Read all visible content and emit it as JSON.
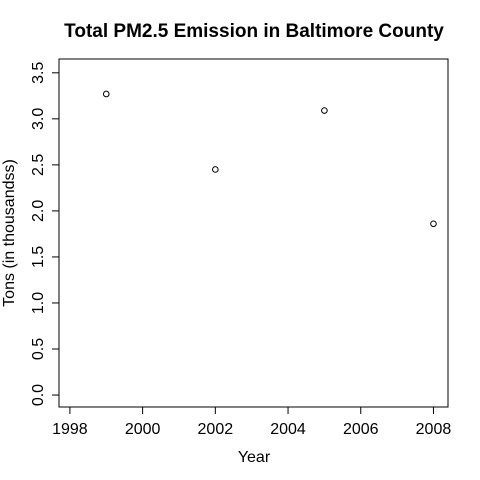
{
  "chart_data": {
    "type": "scatter",
    "title": "Total PM2.5 Emission in Baltimore County",
    "xlabel": "Year",
    "ylabel": "Tons (in thousandss)",
    "xlim": [
      1997.7,
      2008.4
    ],
    "ylim": [
      -0.13,
      3.65
    ],
    "x_ticks": [
      1998,
      2000,
      2002,
      2004,
      2006,
      2008
    ],
    "x_tick_labels": [
      "1998",
      "2000",
      "2002",
      "2004",
      "2006",
      "2008"
    ],
    "y_ticks": [
      0.0,
      0.5,
      1.0,
      1.5,
      2.0,
      2.5,
      3.0,
      3.5
    ],
    "y_tick_labels": [
      "0.0",
      "0.5",
      "1.0",
      "1.5",
      "2.0",
      "2.5",
      "3.0",
      "3.5"
    ],
    "grid": false,
    "legend": "none",
    "marker": "open-circle",
    "series": [
      {
        "x": [
          1999,
          2002,
          2005,
          2008
        ],
        "y": [
          3.27,
          2.45,
          3.09,
          1.86
        ]
      }
    ],
    "colors": {
      "foreground": "#000000",
      "background": "#ffffff"
    }
  }
}
